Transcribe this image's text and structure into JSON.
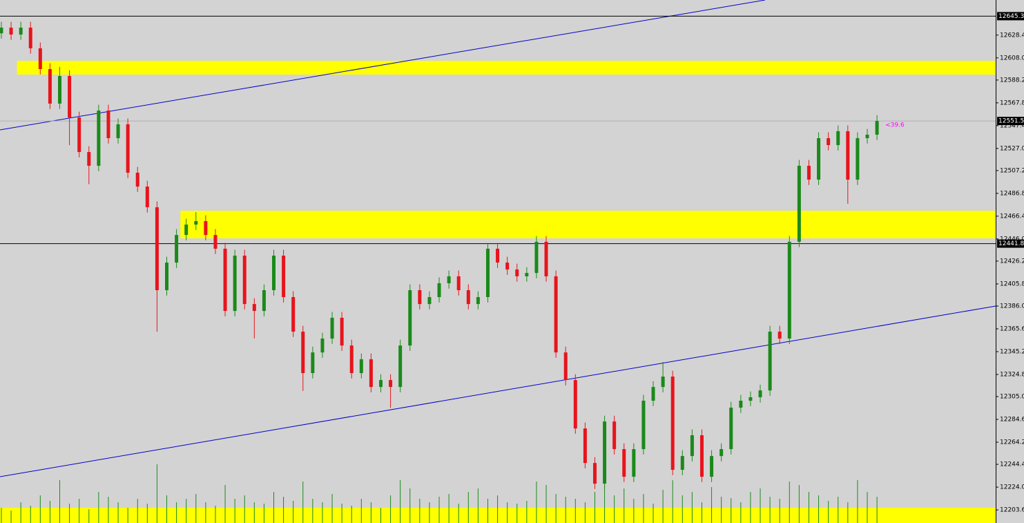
{
  "chart_data": {
    "type": "candlestick",
    "xlim": [
      -0.14,
      102.2
    ],
    "ylim": [
      12191.9,
      12659.8
    ],
    "yticks": [
      {
        "value": 12628.4,
        "label": "12628.40"
      },
      {
        "value": 12608.0,
        "label": "12608.00"
      },
      {
        "value": 12588.2,
        "label": "12588.20"
      },
      {
        "value": 12567.8,
        "label": "12567.80"
      },
      {
        "value": 12547.4,
        "label": "12547.40"
      },
      {
        "value": 12527.0,
        "label": "12527.00"
      },
      {
        "value": 12507.2,
        "label": "12507.20"
      },
      {
        "value": 12486.8,
        "label": "12486.80"
      },
      {
        "value": 12466.4,
        "label": "12466.40"
      },
      {
        "value": 12446.0,
        "label": "12446.00"
      },
      {
        "value": 12426.2,
        "label": "12426.20"
      },
      {
        "value": 12405.8,
        "label": "12405.80"
      },
      {
        "value": 12386.0,
        "label": "12386.00"
      },
      {
        "value": 12365.6,
        "label": "12365.60"
      },
      {
        "value": 12345.2,
        "label": "12345.20"
      },
      {
        "value": 12324.8,
        "label": "12324.80"
      },
      {
        "value": 12305.0,
        "label": "12305.00"
      },
      {
        "value": 12284.6,
        "label": "12284.60"
      },
      {
        "value": 12264.2,
        "label": "12264.20"
      },
      {
        "value": 12244.4,
        "label": "12244.40"
      },
      {
        "value": 12224.0,
        "label": "12224.00"
      },
      {
        "value": 12203.6,
        "label": "12203.60"
      }
    ],
    "up_color": "#1a8a1a",
    "down_color": "#e8141c",
    "open": [
      12630.0,
      12635.1,
      12628.9,
      12635.1,
      12616.6,
      12598.0,
      12567.1,
      12591.8,
      12554.7,
      12523.8,
      12511.5,
      12560.9,
      12536.2,
      12548.6,
      12505.3,
      12492.9,
      12474.4,
      12400.2,
      12424.9,
      12449.6,
      12458.9,
      12462.0,
      12449.6,
      12437.3,
      12381.6,
      12431.1,
      12387.8,
      12381.6,
      12400.2,
      12431.1,
      12394.0,
      12363.1,
      12326.0,
      12344.5,
      12356.9,
      12375.5,
      12350.7,
      12326.0,
      12338.4,
      12313.6,
      12319.8,
      12313.6,
      12350.7,
      12400.2,
      12387.8,
      12394.0,
      12406.4,
      12412.6,
      12400.2,
      12387.8,
      12394.0,
      12437.3,
      12424.9,
      12418.7,
      12412.6,
      12415.6,
      12443.5,
      12412.6,
      12344.5,
      12319.8,
      12276.5,
      12245.6,
      12227.1,
      12282.7,
      12258.0,
      12233.3,
      12258.0,
      12301.3,
      12313.6,
      12322.9,
      12239.5,
      12251.8,
      12270.4,
      12233.3,
      12251.8,
      12258.0,
      12295.1,
      12301.3,
      12304.4,
      12310.5,
      12363.1,
      12356.9,
      12443.5,
      12511.5,
      12499.1,
      12536.2,
      12530.0,
      12542.4,
      12499.1,
      12536.2,
      12539.3
    ],
    "high": [
      12640.3,
      12640.3,
      12640.3,
      12640.3,
      12621.8,
      12603.2,
      12600.0,
      12597.0,
      12559.9,
      12529.0,
      12566.1,
      12566.1,
      12553.8,
      12553.8,
      12510.5,
      12498.1,
      12479.6,
      12430.1,
      12454.8,
      12464.1,
      12470.0,
      12467.2,
      12454.8,
      12442.5,
      12436.3,
      12436.3,
      12393.0,
      12405.4,
      12436.3,
      12436.3,
      12399.2,
      12368.3,
      12349.7,
      12362.1,
      12380.7,
      12380.7,
      12355.9,
      12343.6,
      12343.6,
      12325.0,
      12325.0,
      12355.9,
      12405.4,
      12405.4,
      12399.2,
      12411.6,
      12417.8,
      12417.8,
      12405.4,
      12399.2,
      12442.5,
      12442.5,
      12430.1,
      12423.9,
      12420.8,
      12448.7,
      12448.7,
      12417.8,
      12349.7,
      12325.0,
      12281.7,
      12250.8,
      12287.9,
      12287.9,
      12263.2,
      12263.2,
      12306.5,
      12318.8,
      12336.0,
      12328.1,
      12257.0,
      12275.6,
      12275.6,
      12257.0,
      12263.2,
      12300.3,
      12306.5,
      12309.6,
      12315.7,
      12368.3,
      12368.3,
      12448.7,
      12516.7,
      12516.7,
      12541.4,
      12541.4,
      12547.6,
      12547.6,
      12541.4,
      12544.5,
      12556.8
    ],
    "low": [
      12625.2,
      12624.1,
      12624.1,
      12611.8,
      12593.2,
      12562.3,
      12562.3,
      12530.0,
      12519.0,
      12495.0,
      12506.7,
      12531.4,
      12531.4,
      12500.5,
      12488.1,
      12469.6,
      12363.0,
      12395.4,
      12420.1,
      12444.8,
      12454.1,
      12444.8,
      12432.5,
      12376.8,
      12376.8,
      12383.0,
      12357.0,
      12376.8,
      12395.4,
      12389.2,
      12358.3,
      12310.0,
      12321.2,
      12339.7,
      12352.1,
      12345.9,
      12321.2,
      12321.2,
      12308.8,
      12308.8,
      12295.0,
      12308.8,
      12345.9,
      12383.0,
      12383.0,
      12389.2,
      12401.6,
      12395.4,
      12383.0,
      12383.0,
      12389.2,
      12420.1,
      12413.9,
      12407.8,
      12407.8,
      12410.8,
      12407.8,
      12339.7,
      12315.0,
      12271.7,
      12240.8,
      12222.3,
      12222.3,
      12253.2,
      12228.5,
      12228.5,
      12253.2,
      12296.5,
      12308.8,
      12234.7,
      12234.7,
      12247.0,
      12228.5,
      12228.5,
      12247.0,
      12253.2,
      12290.3,
      12296.5,
      12299.6,
      12305.7,
      12352.1,
      12352.1,
      12438.7,
      12494.3,
      12494.3,
      12525.2,
      12525.2,
      12477.5,
      12494.3,
      12531.4,
      12534.5
    ],
    "close": [
      12635.1,
      12628.9,
      12635.1,
      12616.6,
      12598.0,
      12567.1,
      12591.8,
      12554.7,
      12523.8,
      12511.5,
      12560.9,
      12536.2,
      12548.6,
      12505.3,
      12492.9,
      12474.4,
      12400.2,
      12424.9,
      12449.6,
      12458.9,
      12462.0,
      12449.6,
      12437.3,
      12381.6,
      12431.1,
      12387.8,
      12381.6,
      12400.2,
      12431.1,
      12394.0,
      12363.1,
      12326.0,
      12344.5,
      12356.9,
      12375.5,
      12350.7,
      12326.0,
      12338.4,
      12313.6,
      12319.8,
      12313.6,
      12350.7,
      12400.2,
      12387.8,
      12394.0,
      12406.4,
      12412.6,
      12400.2,
      12387.8,
      12394.0,
      12437.3,
      12424.9,
      12418.7,
      12412.6,
      12415.6,
      12443.5,
      12412.6,
      12344.5,
      12319.8,
      12276.5,
      12245.6,
      12227.1,
      12282.7,
      12258.0,
      12233.3,
      12258.0,
      12301.3,
      12313.6,
      12322.9,
      12239.5,
      12251.8,
      12270.4,
      12233.3,
      12251.8,
      12258.0,
      12295.1,
      12301.3,
      12304.4,
      12310.5,
      12363.1,
      12356.9,
      12443.5,
      12511.5,
      12499.1,
      12536.2,
      12530.0,
      12542.4,
      12499.1,
      12536.2,
      12539.3,
      12551.58
    ],
    "volume": [
      22,
      18,
      30,
      25,
      40,
      32,
      62,
      28,
      35,
      20,
      45,
      38,
      30,
      22,
      35,
      28,
      85,
      40,
      30,
      35,
      42,
      30,
      25,
      55,
      35,
      40,
      30,
      28,
      45,
      38,
      32,
      60,
      35,
      30,
      42,
      28,
      25,
      35,
      30,
      22,
      40,
      62,
      50,
      35,
      30,
      38,
      42,
      28,
      45,
      50,
      35,
      40,
      30,
      28,
      32,
      60,
      55,
      42,
      38,
      35,
      30,
      45,
      55,
      40,
      50,
      35,
      42,
      28,
      48,
      62,
      40,
      45,
      30,
      52,
      38,
      36,
      30,
      45,
      50,
      38,
      35,
      60,
      55,
      45,
      40,
      32,
      38,
      30,
      62,
      45,
      38
    ],
    "volume_lim": [
      0,
      100
    ],
    "volume_color": "#1a8a1a",
    "zones": [
      {
        "from": 1.6,
        "low": 12593.1,
        "high": 12605.4
      },
      {
        "from": 18.4,
        "low": 12446.6,
        "high": 12471.3
      },
      {
        "from": -0.14,
        "low": 12191.9,
        "high": 12205.5
      }
    ],
    "zone_color": "#ffff00",
    "trendlines": [
      {
        "x": [
          -0.14,
          78.5
        ],
        "y": [
          12543.6,
          12659.8
        ]
      },
      {
        "x": [
          -0.14,
          102.2
        ],
        "y": [
          12233.3,
          12386.0
        ]
      }
    ],
    "trendline_color": "#0000cc",
    "hlines": [
      {
        "value": 12645.34,
        "color": "#000000"
      },
      {
        "value": 12441.87,
        "color": "#000000"
      },
      {
        "value": 12551.58,
        "color": "#b0b0b0"
      }
    ],
    "annotation": {
      "text": "<39.6",
      "x": 90,
      "y": 12551.58,
      "color": "#ff00ff"
    }
  }
}
